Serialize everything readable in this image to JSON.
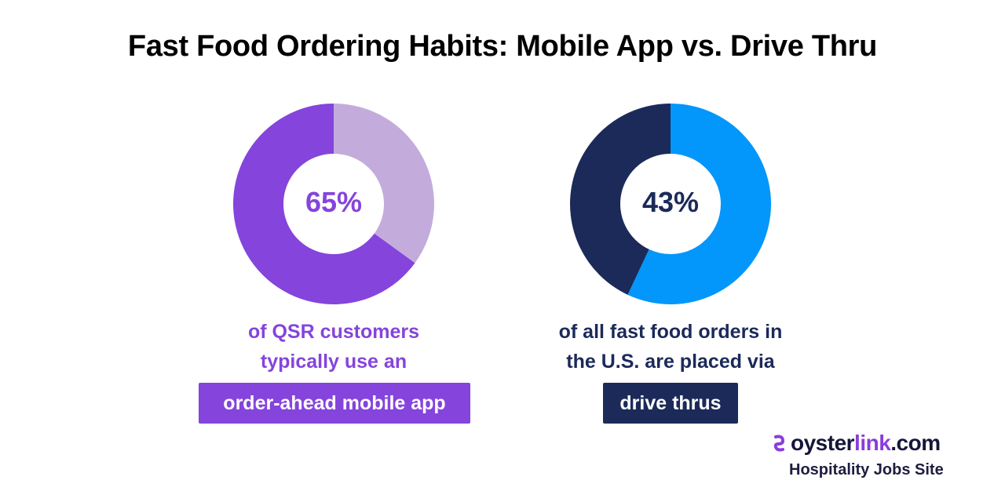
{
  "title": "Fast Food Ordering Habits: Mobile App vs. Drive Thru",
  "colors": {
    "purple": "#8544dc",
    "light_purple": "#c3acdc",
    "blue": "#0396fb",
    "navy": "#1b2a59",
    "brand_accent": "#8a3ddb"
  },
  "chart_data": [
    {
      "type": "pie",
      "variant": "donut",
      "center_label": "65%",
      "values": [
        65,
        35
      ],
      "caption_lines": [
        "of QSR customers",
        "typically use an"
      ],
      "highlight": "order-ahead mobile app"
    },
    {
      "type": "pie",
      "variant": "donut",
      "center_label": "43%",
      "values": [
        43,
        57
      ],
      "caption_lines": [
        "of all fast food orders in",
        "the U.S. are placed via"
      ],
      "highlight": "drive thrus"
    }
  ],
  "brand": {
    "name_start": "oyster",
    "name_accent": "link",
    "name_end": ".com",
    "tagline": "Hospitality Jobs Site",
    "icon": "oyster-swirl-icon"
  }
}
